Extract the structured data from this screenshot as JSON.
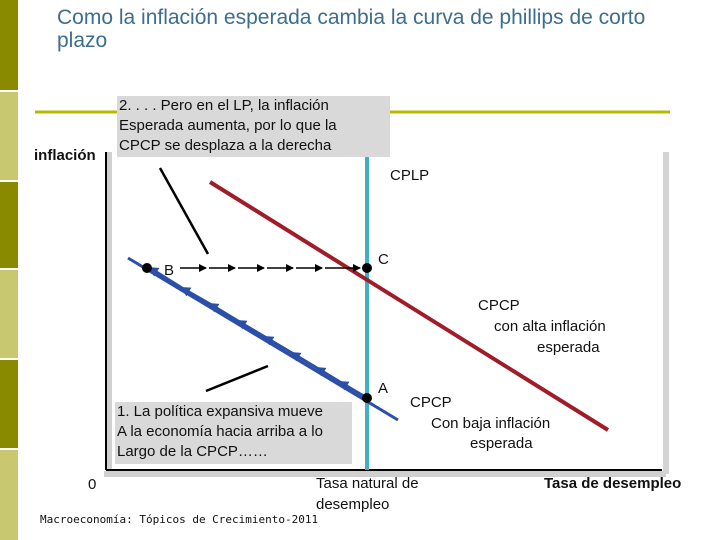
{
  "slide": {
    "title": "Como la inflación esperada cambia la curva de phillips de corto plazo",
    "footer": "Macroeconomía: Tópicos de Crecimiento-2011"
  },
  "axes": {
    "y_label": "inflación",
    "x_label": "Tasa de desempleo",
    "origin": "0",
    "natural_rate_label_1": "Tasa natural de",
    "natural_rate_label_2": "desempleo"
  },
  "curves": {
    "lr": "CPLP",
    "sr_high_1": "CPCP",
    "sr_high_2": "con alta inflación",
    "sr_high_3": "esperada",
    "sr_low_1": "CPCP",
    "sr_low_2": "Con baja inflación",
    "sr_low_3": "esperada"
  },
  "points": {
    "a": "A",
    "b": "B",
    "c": "C"
  },
  "notes": {
    "top_1": "2. . . . Pero en el LP, la inflación",
    "top_2": "Esperada aumenta, por lo que la",
    "top_3": "CPCP se desplaza a la derecha",
    "bottom_1": "1. La política expansiva mueve",
    "bottom_2": "A la economía hacia arriba a  lo",
    "bottom_3": "Largo de la CPCP……"
  },
  "colors": {
    "stripe_dark": "#8a8a00",
    "stripe_light": "#c8c870",
    "rule": "#b8b800",
    "title": "#3c6e8f",
    "lr_curve": "#3fb0c8",
    "sr_low": "#2b4fa8",
    "sr_high": "#a01c28",
    "note_bg": "#d9d9d9"
  }
}
